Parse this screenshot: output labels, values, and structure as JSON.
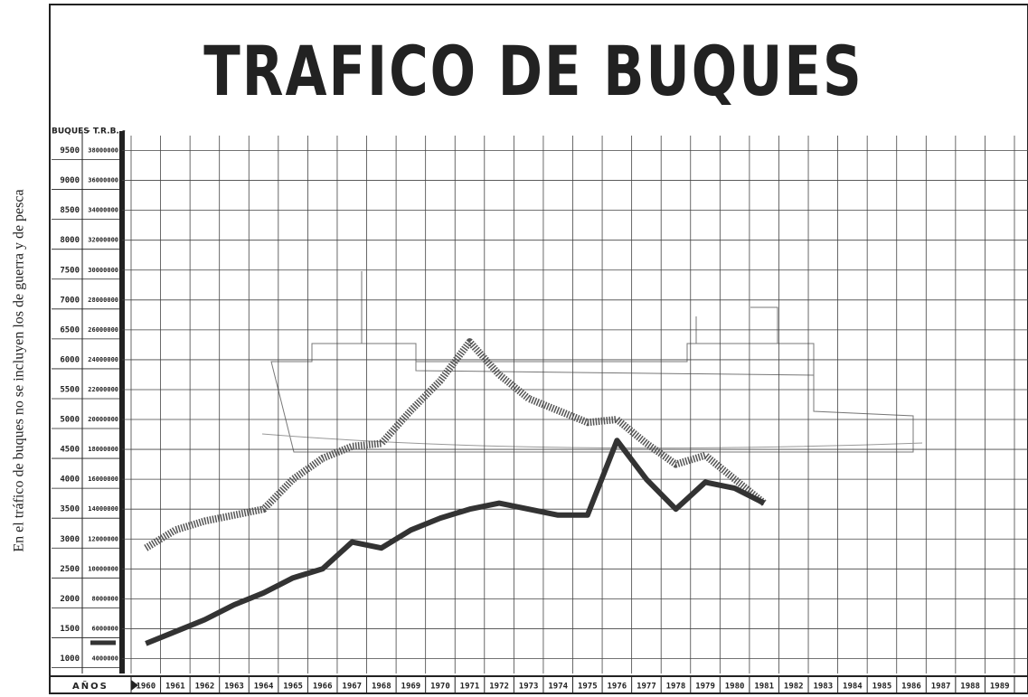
{
  "chart_data": {
    "type": "line",
    "title": "TRAFICO DE BUQUES",
    "note": "En el tráfico de buques no se incluyen los de guerra y de pesca",
    "x_label": "AÑOS",
    "categories": [
      "1960",
      "1961",
      "1962",
      "1963",
      "1964",
      "1965",
      "1966",
      "1967",
      "1968",
      "1969",
      "1970",
      "1971",
      "1972",
      "1973",
      "1974",
      "1975",
      "1976",
      "1977",
      "1978",
      "1979",
      "1980",
      "1981",
      "1982",
      "1983",
      "1984",
      "1985",
      "1986",
      "1987",
      "1988",
      "1989"
    ],
    "series": [
      {
        "name": "BUQUES",
        "color": "#555555",
        "style": "hatched",
        "values": [
          2850,
          3150,
          3300,
          3400,
          3500,
          4000,
          4350,
          4550,
          4600,
          5150,
          5650,
          6300,
          5750,
          5350,
          5150,
          4950,
          5000,
          4600,
          4250,
          4400,
          4000,
          3600,
          null,
          null,
          null,
          null,
          null,
          null,
          null,
          null
        ]
      },
      {
        "name": "- T.R.B. -",
        "color": "#333333",
        "style": "solid",
        "axis": "y2",
        "values": [
          5000000,
          5800000,
          6600000,
          7600000,
          8400000,
          9400000,
          10000000,
          11800000,
          11400000,
          12600000,
          13400000,
          14000000,
          14400000,
          14000000,
          13600000,
          13600000,
          18600000,
          16000000,
          14000000,
          15800000,
          15400000,
          14400000,
          null,
          null,
          null,
          null,
          null,
          null,
          null,
          null
        ]
      }
    ],
    "ylim": [
      750,
      9750
    ],
    "yticks": [
      1000,
      1500,
      2000,
      2500,
      3000,
      3500,
      4000,
      4500,
      5000,
      5500,
      6000,
      6500,
      7000,
      7500,
      8000,
      8500,
      9000,
      9500
    ],
    "y2lim": [
      3000000,
      39000000
    ],
    "y2ticks": [
      4000000,
      6000000,
      8000000,
      10000000,
      12000000,
      14000000,
      16000000,
      18000000,
      20000000,
      22000000,
      24000000,
      26000000,
      28000000,
      30000000,
      32000000,
      34000000,
      36000000,
      38000000
    ],
    "grid": true,
    "legend": "bottom-left"
  }
}
